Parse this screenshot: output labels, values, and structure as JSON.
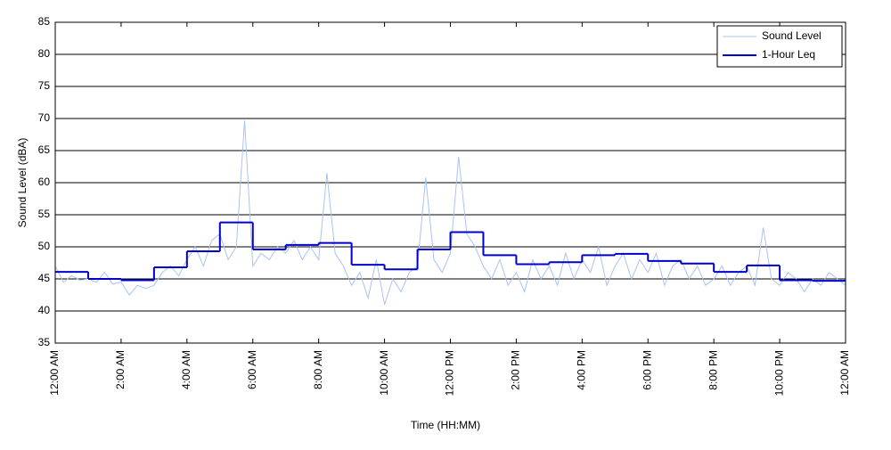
{
  "chart_data": {
    "type": "line",
    "x_label": "Time (HH:MM)",
    "y_label": "Sound Level (dBA)",
    "xlim": [
      0,
      24
    ],
    "ylim": [
      35,
      85
    ],
    "yticks": [
      35,
      40,
      45,
      50,
      55,
      60,
      65,
      70,
      75,
      80,
      85
    ],
    "xticks": [
      {
        "value": 0,
        "label": "12:00 AM"
      },
      {
        "value": 2,
        "label": "2:00 AM"
      },
      {
        "value": 4,
        "label": "4:00 AM"
      },
      {
        "value": 6,
        "label": "6:00 AM"
      },
      {
        "value": 8,
        "label": "8:00 AM"
      },
      {
        "value": 10,
        "label": "10:00 AM"
      },
      {
        "value": 12,
        "label": "12:00 PM"
      },
      {
        "value": 14,
        "label": "2:00 PM"
      },
      {
        "value": 16,
        "label": "4:00 PM"
      },
      {
        "value": 18,
        "label": "6:00 PM"
      },
      {
        "value": 20,
        "label": "8:00 PM"
      },
      {
        "value": 22,
        "label": "10:00 PM"
      },
      {
        "value": 24,
        "label": "12:00 AM"
      }
    ],
    "grid": true,
    "legend": "upper right",
    "series": [
      {
        "name": "Sound Level",
        "color": "#a9c3f2",
        "x": [
          0,
          0.25,
          0.5,
          0.75,
          1,
          1.25,
          1.5,
          1.75,
          2,
          2.25,
          2.5,
          2.75,
          3,
          3.25,
          3.5,
          3.75,
          4,
          4.25,
          4.5,
          4.75,
          5,
          5.25,
          5.5,
          5.75,
          6,
          6.25,
          6.5,
          6.75,
          7,
          7.25,
          7.5,
          7.75,
          8,
          8.25,
          8.5,
          8.75,
          9,
          9.25,
          9.5,
          9.75,
          10,
          10.25,
          10.5,
          10.75,
          11,
          11.25,
          11.5,
          11.75,
          12,
          12.25,
          12.5,
          12.75,
          13,
          13.25,
          13.5,
          13.75,
          14,
          14.25,
          14.5,
          14.75,
          15,
          15.25,
          15.5,
          15.75,
          16,
          16.25,
          16.5,
          16.75,
          17,
          17.25,
          17.5,
          17.75,
          18,
          18.25,
          18.5,
          18.75,
          19,
          19.25,
          19.5,
          19.75,
          20,
          20.25,
          20.5,
          20.75,
          21,
          21.25,
          21.5,
          21.75,
          22,
          22.25,
          22.5,
          22.75,
          23,
          23.25,
          23.5,
          23.75,
          24
        ],
        "values": [
          47,
          44.5,
          45.5,
          44.8,
          45,
          44.5,
          46,
          44.2,
          44.5,
          42.5,
          44,
          43.5,
          44,
          46,
          47,
          45.5,
          48,
          50,
          47,
          51,
          52,
          48,
          50,
          69.7,
          47,
          49,
          48,
          50,
          49,
          51,
          48,
          50,
          48,
          61.5,
          49,
          47,
          44,
          46,
          42,
          48,
          41,
          45,
          43,
          46,
          47,
          60.8,
          48,
          46,
          49,
          64,
          52,
          50,
          47,
          45,
          48,
          44,
          46,
          43,
          48,
          45,
          47,
          44,
          49,
          45,
          48,
          46,
          50,
          44,
          47,
          49,
          45,
          48,
          46,
          49,
          44,
          47,
          48,
          45,
          47,
          44,
          45,
          47,
          44,
          46,
          47,
          44,
          53,
          45,
          44,
          46,
          45,
          43,
          45,
          44,
          46,
          45,
          44
        ]
      },
      {
        "name": "1-Hour Leq",
        "color": "#0000cc",
        "x": [
          0,
          1,
          2,
          3,
          4,
          5,
          6,
          7,
          8,
          9,
          10,
          11,
          12,
          13,
          14,
          15,
          16,
          17,
          18,
          19,
          20,
          21,
          22,
          23
        ],
        "values": [
          46.1,
          45.0,
          44.8,
          46.8,
          49.3,
          53.8,
          49.6,
          50.3,
          50.6,
          47.2,
          46.5,
          49.6,
          52.3,
          48.7,
          47.3,
          47.6,
          48.7,
          48.9,
          47.8,
          47.4,
          46.1,
          47.1,
          44.8,
          44.7
        ]
      }
    ]
  }
}
